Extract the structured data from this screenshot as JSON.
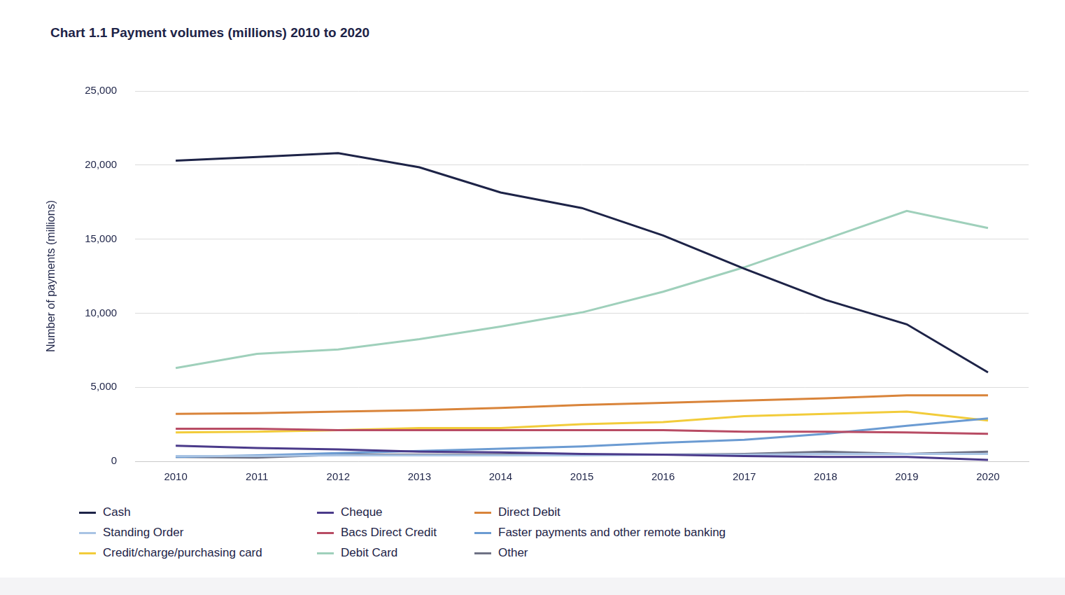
{
  "chart_data": {
    "type": "line",
    "title": "Chart 1.1 Payment volumes (millions) 2010 to 2020",
    "y_label": "Number of payments (millions)",
    "categories": [
      "2010",
      "2011",
      "2012",
      "2013",
      "2014",
      "2015",
      "2016",
      "2017",
      "2018",
      "2019",
      "2020"
    ],
    "series": [
      {
        "name": "Cash",
        "color": "#1d2347",
        "values": [
          20300,
          20550,
          20800,
          19850,
          18150,
          17100,
          15250,
          13000,
          10900,
          9250,
          6000
        ]
      },
      {
        "name": "Cheque",
        "color": "#4a3a8a",
        "values": [
          1050,
          900,
          800,
          650,
          600,
          500,
          450,
          350,
          300,
          300,
          100
        ]
      },
      {
        "name": "Direct Debit",
        "color": "#d9843a",
        "values": [
          3200,
          3250,
          3350,
          3450,
          3600,
          3800,
          3950,
          4100,
          4250,
          4450,
          4450
        ]
      },
      {
        "name": "Standing Order",
        "color": "#a9c4e4",
        "values": [
          350,
          350,
          400,
          400,
          400,
          400,
          450,
          450,
          500,
          500,
          500
        ]
      },
      {
        "name": "Bacs Direct Credit",
        "color": "#b84c64",
        "values": [
          2200,
          2200,
          2100,
          2100,
          2100,
          2100,
          2100,
          2000,
          2000,
          1950,
          1850
        ]
      },
      {
        "name": "Faster payments and other remote banking",
        "color": "#6b9bd2",
        "values": [
          300,
          400,
          550,
          700,
          850,
          1000,
          1250,
          1450,
          1850,
          2400,
          2900
        ]
      },
      {
        "name": "Credit/charge/purchasing card",
        "color": "#f2cc3a",
        "values": [
          1950,
          2000,
          2100,
          2250,
          2250,
          2500,
          2650,
          3050,
          3200,
          3350,
          2750
        ]
      },
      {
        "name": "Debit Card",
        "color": "#9fd0bb",
        "values": [
          6300,
          7250,
          7550,
          8250,
          9100,
          10050,
          11450,
          13100,
          15000,
          16900,
          15750
        ]
      },
      {
        "name": "Other",
        "color": "#6f7285",
        "values": [
          300,
          250,
          450,
          450,
          450,
          450,
          450,
          500,
          650,
          500,
          650
        ]
      }
    ],
    "ylim": [
      0,
      25000
    ],
    "yticks": [
      0,
      {
        "value": 5000,
        "label": "5,000"
      },
      {
        "value": 10000,
        "label": "10,000"
      },
      {
        "value": 15000,
        "label": "15,000"
      },
      {
        "value": 20000,
        "label": "20,000"
      },
      {
        "value": 25000,
        "label": "25,000"
      }
    ],
    "grid": true,
    "legend": "bottom"
  }
}
